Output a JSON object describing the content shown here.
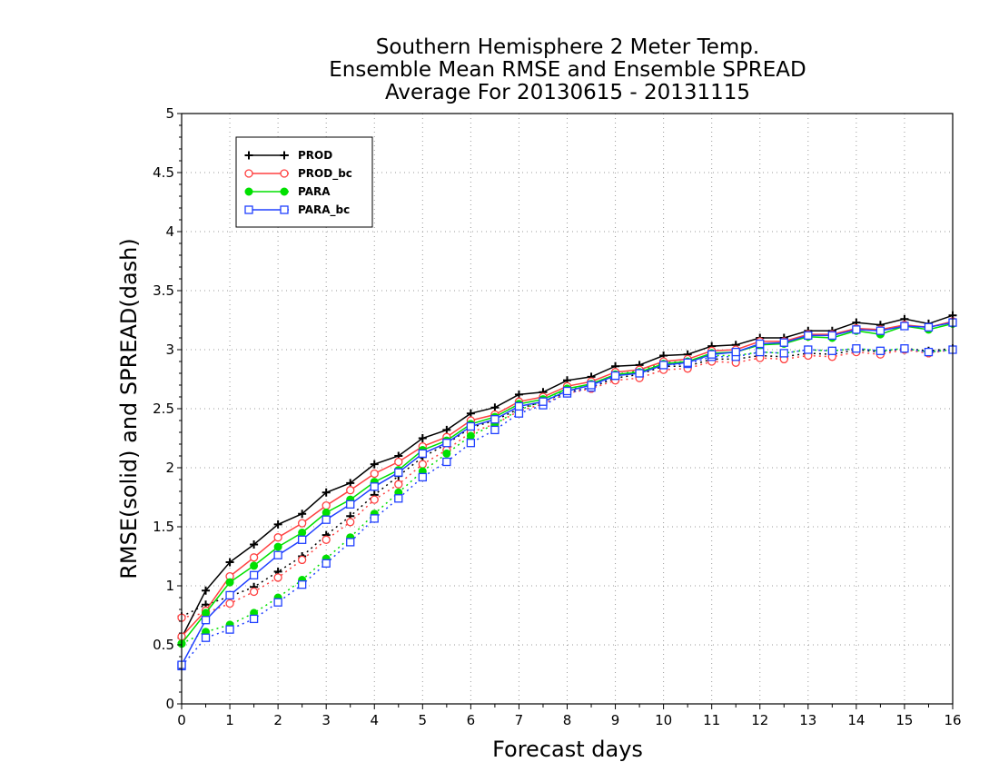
{
  "chart_data": {
    "type": "line",
    "title_lines": [
      "Southern Hemisphere 2 Meter Temp.",
      "Ensemble Mean RMSE and Ensemble SPREAD",
      "Average For 20130615 - 20131115"
    ],
    "xlabel": "Forecast days",
    "ylabel": "RMSE(solid) and SPREAD(dash)",
    "xlim": [
      0,
      16
    ],
    "ylim": [
      0,
      5
    ],
    "x_ticks": [
      "0",
      "1",
      "2",
      "3",
      "4",
      "5",
      "6",
      "7",
      "8",
      "9",
      "10",
      "11",
      "12",
      "13",
      "14",
      "15",
      "16"
    ],
    "y_ticks": [
      "0",
      "0.5",
      "1",
      "1.5",
      "2",
      "2.5",
      "3",
      "3.5",
      "4",
      "4.5",
      "5"
    ],
    "grid": true,
    "legend_position": "top-left",
    "x": [
      0,
      0.5,
      1,
      1.5,
      2,
      2.5,
      3,
      3.5,
      4,
      4.5,
      5,
      5.5,
      6,
      6.5,
      7,
      7.5,
      8,
      8.5,
      9,
      9.5,
      10,
      10.5,
      11,
      11.5,
      12,
      12.5,
      13,
      13.5,
      14,
      14.5,
      15,
      15.5,
      16
    ],
    "series": [
      {
        "name": "PROD",
        "color": "#000000",
        "marker": "plus",
        "rmse": [
          0.56,
          0.96,
          1.2,
          1.35,
          1.52,
          1.61,
          1.79,
          1.87,
          2.03,
          2.1,
          2.25,
          2.32,
          2.46,
          2.51,
          2.62,
          2.64,
          2.74,
          2.77,
          2.86,
          2.87,
          2.95,
          2.96,
          3.03,
          3.04,
          3.1,
          3.1,
          3.16,
          3.16,
          3.23,
          3.21,
          3.26,
          3.22,
          3.29
        ],
        "spread": [
          0.74,
          0.84,
          0.91,
          0.99,
          1.12,
          1.25,
          1.43,
          1.59,
          1.77,
          1.93,
          2.09,
          2.2,
          2.34,
          2.4,
          2.5,
          2.56,
          2.64,
          2.68,
          2.76,
          2.79,
          2.86,
          2.86,
          2.92,
          2.92,
          2.95,
          2.94,
          2.97,
          2.96,
          3.0,
          2.98,
          3.01,
          2.99,
          3.01
        ]
      },
      {
        "name": "PROD_bc",
        "color": "#ff4040",
        "marker": "circle-open",
        "rmse": [
          0.57,
          0.79,
          1.08,
          1.24,
          1.41,
          1.53,
          1.68,
          1.81,
          1.95,
          2.05,
          2.18,
          2.26,
          2.4,
          2.45,
          2.56,
          2.6,
          2.69,
          2.73,
          2.81,
          2.83,
          2.9,
          2.92,
          2.99,
          3.0,
          3.07,
          3.07,
          3.13,
          3.13,
          3.18,
          3.17,
          3.21,
          3.19,
          3.24
        ],
        "spread": [
          0.73,
          0.77,
          0.85,
          0.95,
          1.07,
          1.22,
          1.39,
          1.54,
          1.73,
          1.86,
          2.03,
          2.15,
          2.3,
          2.37,
          2.48,
          2.54,
          2.63,
          2.67,
          2.74,
          2.76,
          2.83,
          2.84,
          2.9,
          2.89,
          2.93,
          2.92,
          2.95,
          2.94,
          2.98,
          2.96,
          3.0,
          2.97,
          3.0
        ]
      },
      {
        "name": "PARA",
        "color": "#00e000",
        "marker": "circle-filled",
        "rmse": [
          0.51,
          0.77,
          1.03,
          1.17,
          1.33,
          1.45,
          1.62,
          1.73,
          1.88,
          1.98,
          2.15,
          2.23,
          2.37,
          2.43,
          2.54,
          2.58,
          2.67,
          2.71,
          2.79,
          2.81,
          2.88,
          2.9,
          2.97,
          2.98,
          3.04,
          3.05,
          3.11,
          3.1,
          3.16,
          3.13,
          3.2,
          3.17,
          3.22
        ],
        "spread": [
          0.51,
          0.61,
          0.67,
          0.77,
          0.9,
          1.05,
          1.23,
          1.41,
          1.61,
          1.79,
          1.97,
          2.12,
          2.27,
          2.37,
          2.49,
          2.56,
          2.66,
          2.71,
          2.79,
          2.82,
          2.89,
          2.9,
          2.95,
          2.95,
          2.98,
          2.97,
          3.0,
          2.99,
          3.01,
          2.99,
          3.01,
          2.98,
          3.0
        ]
      },
      {
        "name": "PARA_bc",
        "color": "#2040ff",
        "marker": "square-open",
        "rmse": [
          0.33,
          0.71,
          0.92,
          1.09,
          1.26,
          1.39,
          1.56,
          1.69,
          1.84,
          1.96,
          2.12,
          2.21,
          2.35,
          2.41,
          2.52,
          2.56,
          2.65,
          2.7,
          2.78,
          2.8,
          2.87,
          2.89,
          2.96,
          2.98,
          3.05,
          3.06,
          3.12,
          3.12,
          3.17,
          3.16,
          3.2,
          3.19,
          3.23
        ],
        "spread": [
          0.32,
          0.56,
          0.63,
          0.72,
          0.86,
          1.01,
          1.19,
          1.37,
          1.57,
          1.74,
          1.92,
          2.05,
          2.21,
          2.32,
          2.46,
          2.53,
          2.63,
          2.68,
          2.78,
          2.81,
          2.87,
          2.88,
          2.94,
          2.94,
          2.98,
          2.97,
          3.0,
          2.99,
          3.01,
          2.99,
          3.01,
          2.98,
          3.0
        ]
      }
    ]
  }
}
